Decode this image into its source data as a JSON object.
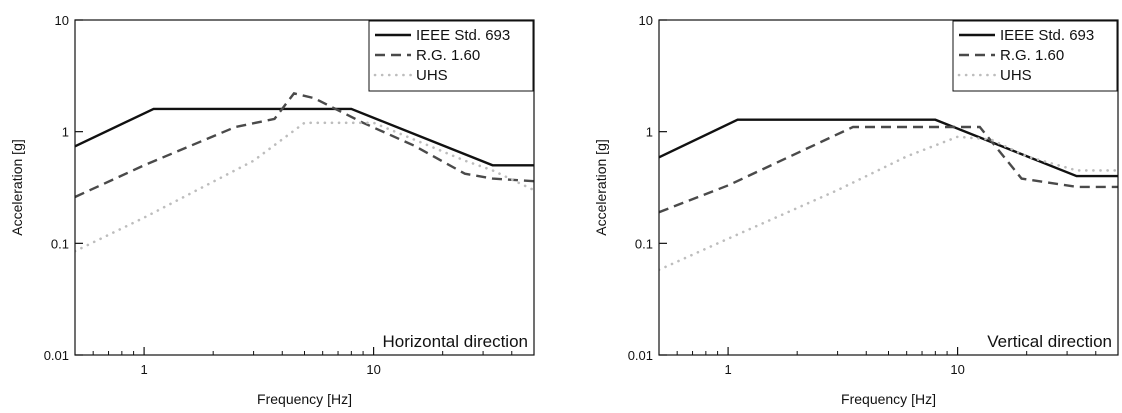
{
  "chart_data": [
    {
      "type": "line",
      "x_scale": "log",
      "y_scale": "log",
      "xlabel": "Frequency [Hz]",
      "ylabel": "Acceleration [g]",
      "xlim": [
        0.5,
        50
      ],
      "ylim": [
        0.01,
        10
      ],
      "x_ticks": [
        1,
        10
      ],
      "x_tick_labels": [
        "1",
        "10"
      ],
      "y_ticks": [
        0.01,
        0.1,
        1,
        10
      ],
      "y_tick_labels": [
        "0.01",
        "0.1",
        "1",
        "10"
      ],
      "grid": false,
      "legend_position": "top-right",
      "annotation": "Horizontal direction",
      "series": [
        {
          "name": "IEEE Std. 693",
          "style": "solid",
          "color": "#111111",
          "x": [
            0.5,
            1.1,
            8,
            33,
            50
          ],
          "y": [
            0.74,
            1.6,
            1.6,
            0.5,
            0.5
          ]
        },
        {
          "name": "R.G. 1.60",
          "style": "dashed",
          "color": "#4a4a4a",
          "x": [
            0.5,
            1.0,
            2.5,
            3.7,
            4.5,
            5.5,
            9.0,
            15,
            25,
            33,
            50
          ],
          "y": [
            0.26,
            0.5,
            1.1,
            1.3,
            2.2,
            2.0,
            1.2,
            0.75,
            0.42,
            0.38,
            0.36
          ]
        },
        {
          "name": "UHS",
          "style": "dotted",
          "color": "#bdbdbd",
          "x": [
            0.5,
            1.0,
            3.0,
            5.0,
            10,
            15,
            25,
            33,
            50
          ],
          "y": [
            0.085,
            0.17,
            0.55,
            1.2,
            1.2,
            0.85,
            0.55,
            0.45,
            0.3
          ]
        }
      ]
    },
    {
      "type": "line",
      "x_scale": "log",
      "y_scale": "log",
      "xlabel": "Frequency [Hz]",
      "ylabel": "Acceleration [g]",
      "xlim": [
        0.5,
        50
      ],
      "ylim": [
        0.01,
        10
      ],
      "x_ticks": [
        1,
        10
      ],
      "x_tick_labels": [
        "1",
        "10"
      ],
      "y_ticks": [
        0.01,
        0.1,
        1,
        10
      ],
      "y_tick_labels": [
        "0.01",
        "0.1",
        "1",
        "10"
      ],
      "grid": false,
      "legend_position": "top-right",
      "annotation": "Vertical direction",
      "series": [
        {
          "name": "IEEE Std. 693",
          "style": "solid",
          "color": "#111111",
          "x": [
            0.5,
            1.1,
            8,
            33,
            50
          ],
          "y": [
            0.59,
            1.28,
            1.28,
            0.4,
            0.4
          ]
        },
        {
          "name": "R.G. 1.60",
          "style": "dashed",
          "color": "#4a4a4a",
          "x": [
            0.5,
            1.0,
            3.5,
            9.0,
            12.5,
            19,
            33,
            50
          ],
          "y": [
            0.19,
            0.33,
            1.1,
            1.1,
            1.1,
            0.38,
            0.32,
            0.32
          ]
        },
        {
          "name": "UHS",
          "style": "dotted",
          "color": "#bdbdbd",
          "x": [
            0.5,
            1.0,
            3.0,
            6.0,
            10,
            14,
            20,
            33,
            50
          ],
          "y": [
            0.058,
            0.11,
            0.3,
            0.6,
            0.9,
            0.85,
            0.6,
            0.45,
            0.45
          ]
        }
      ]
    }
  ]
}
